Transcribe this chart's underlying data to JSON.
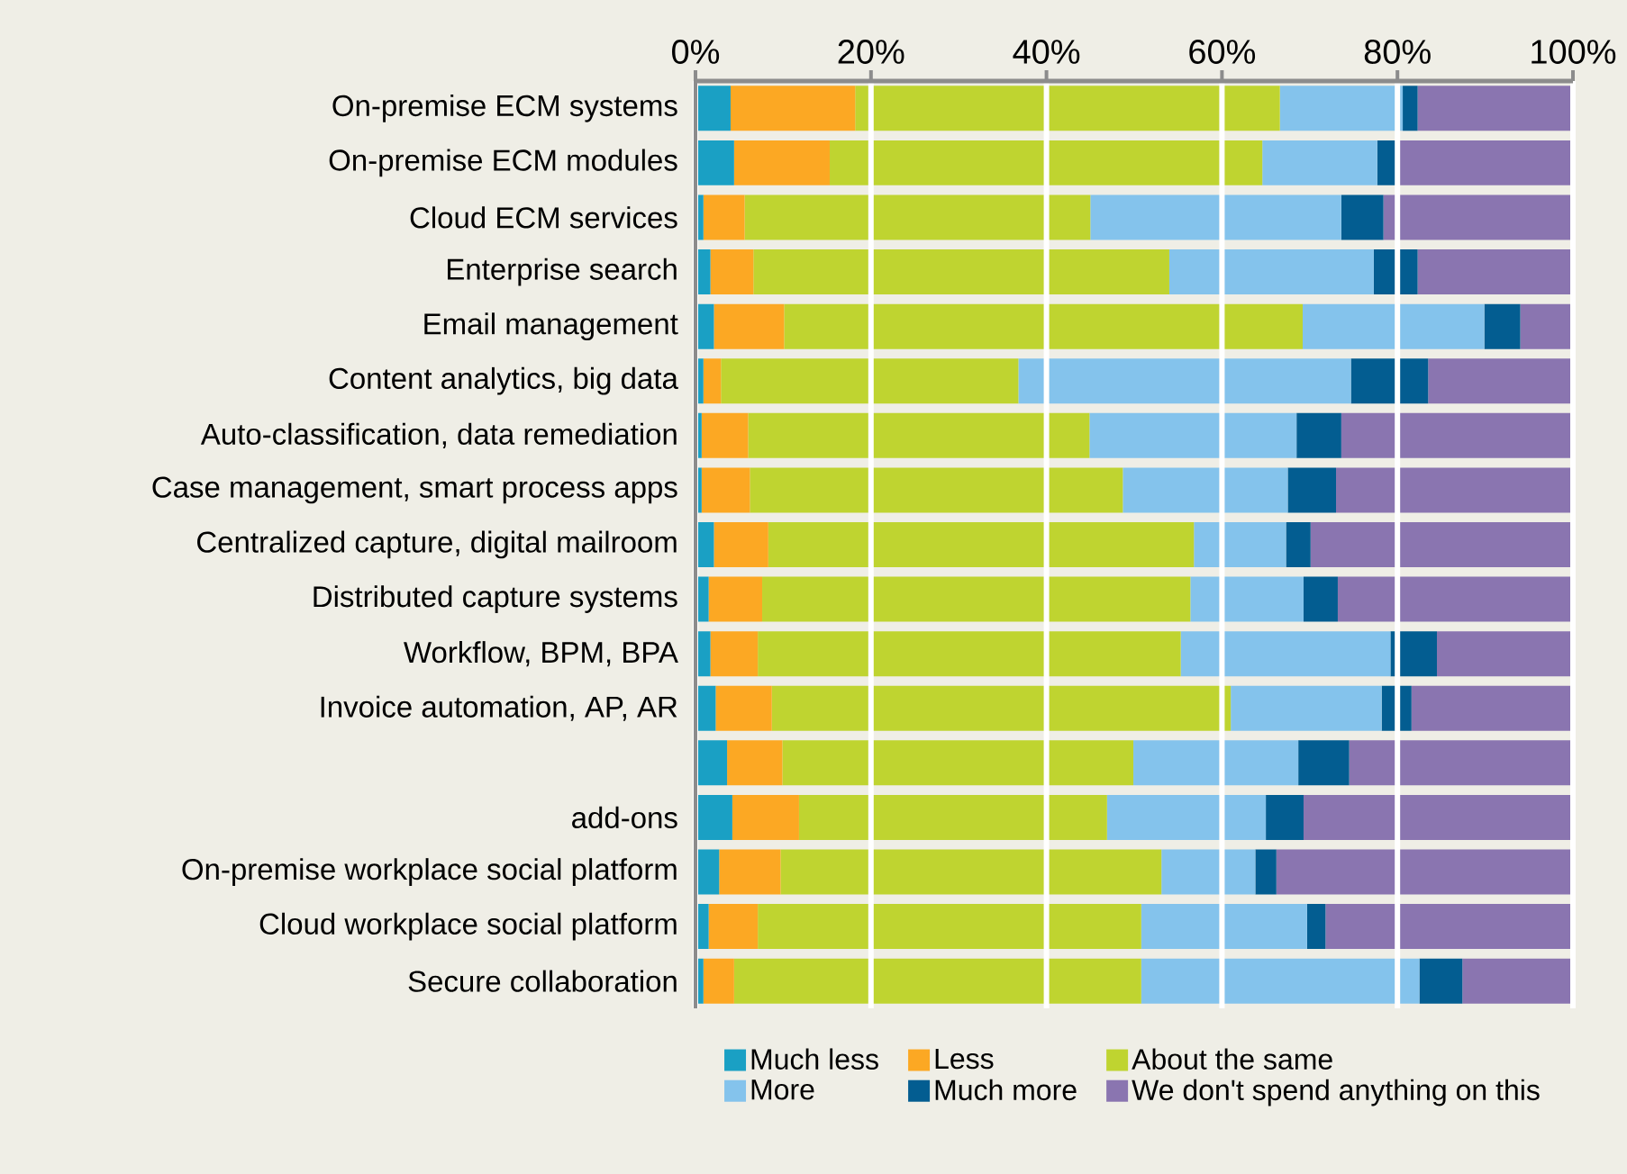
{
  "chart_data": {
    "type": "bar",
    "orientation": "horizontal",
    "stacked": true,
    "grid": "x",
    "legend": "bottom",
    "categories": [
      "On-premise ECM systems",
      "On-premise ECM modules",
      "Cloud ECM services",
      "Enterprise search",
      "Email management",
      "Content analytics, big data",
      "Auto-classification, data remediation",
      "Case management, smart process apps",
      "Centralized capture, digital mailroom",
      "Distributed capture systems",
      "Workflow, BPM, BPA",
      "Invoice automation, AP, AR",
      null,
      "add-ons",
      "On-premise workplace social platform",
      "Cloud workplace social platform",
      "Secure collaboration"
    ],
    "xlim": [
      0,
      100
    ],
    "xticks": [
      {
        "value": 0,
        "label": "0%"
      },
      {
        "value": 20,
        "label": "20%"
      },
      {
        "value": 40,
        "label": "40%"
      },
      {
        "value": 60,
        "label": "60%"
      },
      {
        "value": 80,
        "label": "80%"
      },
      {
        "value": 100,
        "label": "100%"
      }
    ],
    "series": [
      {
        "name": "Much less",
        "color": "#1aa0c4",
        "values": [
          4.0,
          4.4,
          0.9,
          1.7,
          2.1,
          0.9,
          0.7,
          0.7,
          2.1,
          1.5,
          1.7,
          2.3,
          3.6,
          4.2,
          2.7,
          1.5,
          0.9
        ]
      },
      {
        "name": "Less",
        "color": "#fca823",
        "values": [
          14.2,
          10.9,
          4.7,
          4.9,
          8.0,
          2.0,
          5.3,
          5.5,
          6.2,
          6.1,
          5.4,
          6.4,
          6.3,
          7.6,
          7.0,
          5.6,
          3.5
        ]
      },
      {
        "name": "About the same",
        "color": "#bfd430",
        "values": [
          48.4,
          49.3,
          39.4,
          47.4,
          59.1,
          33.9,
          38.9,
          42.5,
          48.5,
          48.8,
          48.2,
          52.3,
          40.0,
          35.1,
          43.4,
          43.7,
          46.4
        ]
      },
      {
        "name": "More",
        "color": "#84c3ec",
        "values": [
          14.0,
          13.1,
          28.6,
          23.3,
          20.7,
          37.9,
          23.6,
          18.8,
          10.5,
          12.9,
          23.9,
          17.2,
          18.8,
          18.1,
          10.7,
          18.9,
          31.7
        ]
      },
      {
        "name": "Much more",
        "color": "#035d91",
        "values": [
          1.7,
          2.1,
          4.8,
          5.0,
          4.1,
          8.8,
          5.1,
          5.5,
          2.8,
          3.9,
          5.3,
          3.4,
          5.8,
          4.3,
          2.4,
          2.1,
          4.9
        ]
      },
      {
        "name": "We don't spend anything on this",
        "color": "#8a75b0",
        "values": [
          17.7,
          20.2,
          21.6,
          17.7,
          6.0,
          16.5,
          26.4,
          27.0,
          29.9,
          26.8,
          15.5,
          18.4,
          25.5,
          30.7,
          33.8,
          28.2,
          12.6
        ]
      }
    ]
  }
}
